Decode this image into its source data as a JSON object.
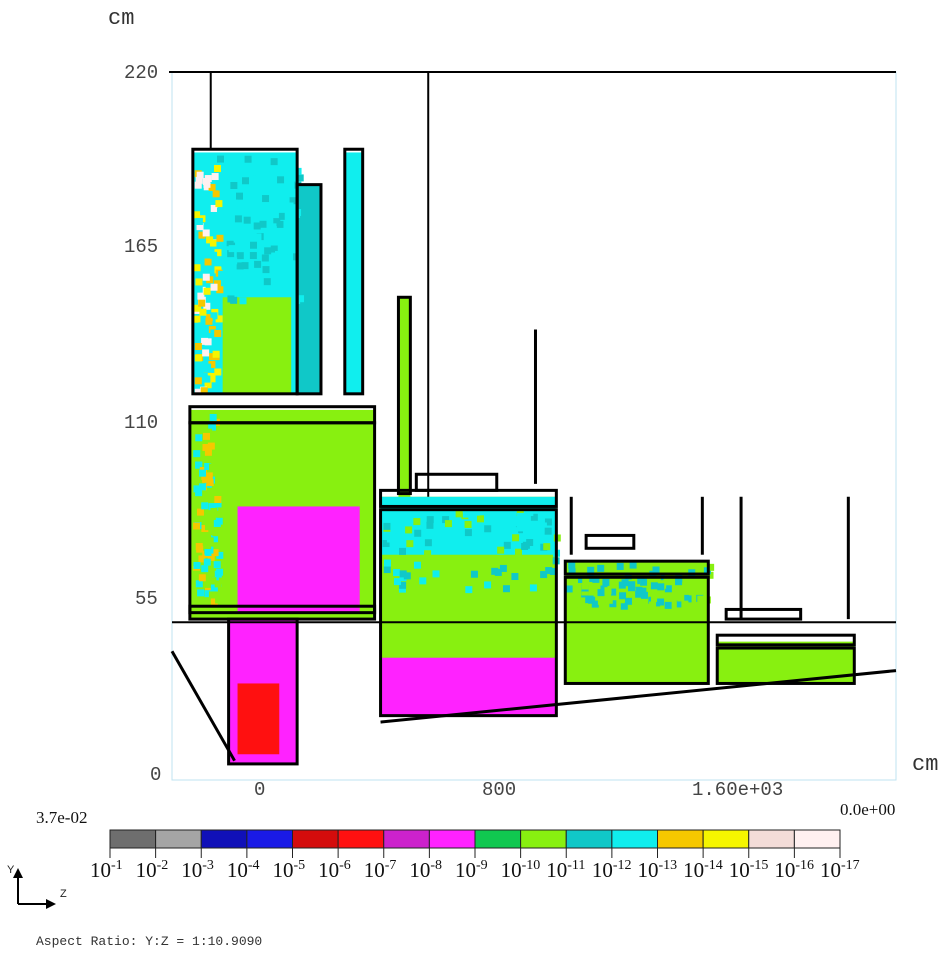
{
  "chart_data": {
    "type": "heatmap",
    "x_unit": "cm",
    "y_unit": "cm",
    "x_ticks": [
      "0",
      "800",
      "1.60e+03"
    ],
    "x_tick_values": [
      0,
      800,
      1600
    ],
    "y_ticks": [
      "0",
      "55",
      "110",
      "165",
      "220"
    ],
    "y_tick_values": [
      0,
      55,
      110,
      165,
      220
    ],
    "xlim": [
      -300,
      2130
    ],
    "ylim": [
      0,
      220
    ],
    "colorbar": {
      "max_label": "3.7e-02",
      "min_label": "0.0e+00",
      "colors": [
        "#6e6e6e",
        "#a5a5a5",
        "#1010b8",
        "#1a1ae6",
        "#d40c0c",
        "#ff1010",
        "#cc22cc",
        "#ff22ff",
        "#10c850",
        "#88f010",
        "#10c8c8",
        "#10eeee",
        "#f5c800",
        "#f5f500",
        "#f3dcd8",
        "#fff0f0"
      ],
      "labels": [
        "-1",
        "-2",
        "-3",
        "-4",
        "-5",
        "-6",
        "-7",
        "-8",
        "-9",
        "-10",
        "-11",
        "-12",
        "-13",
        "-14",
        "-15",
        "-16",
        "-17"
      ],
      "base": "10"
    },
    "regions": [
      {
        "name": "upper-left-block",
        "x": [
          -230,
          120
        ],
        "y": [
          120,
          195
        ],
        "value": "1e-12"
      },
      {
        "name": "upper-left-block-core",
        "x": [
          -130,
          100
        ],
        "y": [
          120,
          150
        ],
        "value": "1e-10"
      },
      {
        "name": "left-tall-bar-1",
        "x": [
          120,
          200
        ],
        "y": [
          120,
          185
        ],
        "value": "1e-11"
      },
      {
        "name": "left-tall-bar-2",
        "x": [
          280,
          340
        ],
        "y": [
          120,
          195
        ],
        "value": "1e-12"
      },
      {
        "name": "left-middle-block",
        "x": [
          -240,
          380
        ],
        "y": [
          50,
          115
        ],
        "value": "1e-10"
      },
      {
        "name": "left-middle-hotspot",
        "x": [
          -80,
          330
        ],
        "y": [
          52,
          85
        ],
        "value": "1e-8"
      },
      {
        "name": "narrow-bar",
        "x": [
          460,
          500
        ],
        "y": [
          80,
          150
        ],
        "value": "1e-10"
      },
      {
        "name": "centre-block",
        "x": [
          400,
          990
        ],
        "y": [
          20,
          88
        ],
        "value": "1e-10"
      },
      {
        "name": "centre-block-top",
        "x": [
          400,
          990
        ],
        "y": [
          70,
          88
        ],
        "value": "1e-12"
      },
      {
        "name": "centre-block-bottom",
        "x": [
          400,
          990
        ],
        "y": [
          20,
          38
        ],
        "value": "1e-8"
      },
      {
        "name": "right-block-1",
        "x": [
          1020,
          1500
        ],
        "y": [
          30,
          68
        ],
        "value": "1e-10"
      },
      {
        "name": "right-block-2",
        "x": [
          1530,
          1990
        ],
        "y": [
          30,
          43
        ],
        "value": "1e-10"
      },
      {
        "name": "funnel",
        "x": [
          -110,
          120
        ],
        "y": [
          5,
          50
        ],
        "value": "1e-8"
      },
      {
        "name": "funnel-core",
        "x": [
          -80,
          60
        ],
        "y": [
          8,
          30
        ],
        "value": "1e-6"
      }
    ]
  },
  "footer": {
    "axes_y": "Y",
    "axes_z": "Z",
    "aspect": "Aspect Ratio: Y:Z = 1:10.9090"
  }
}
